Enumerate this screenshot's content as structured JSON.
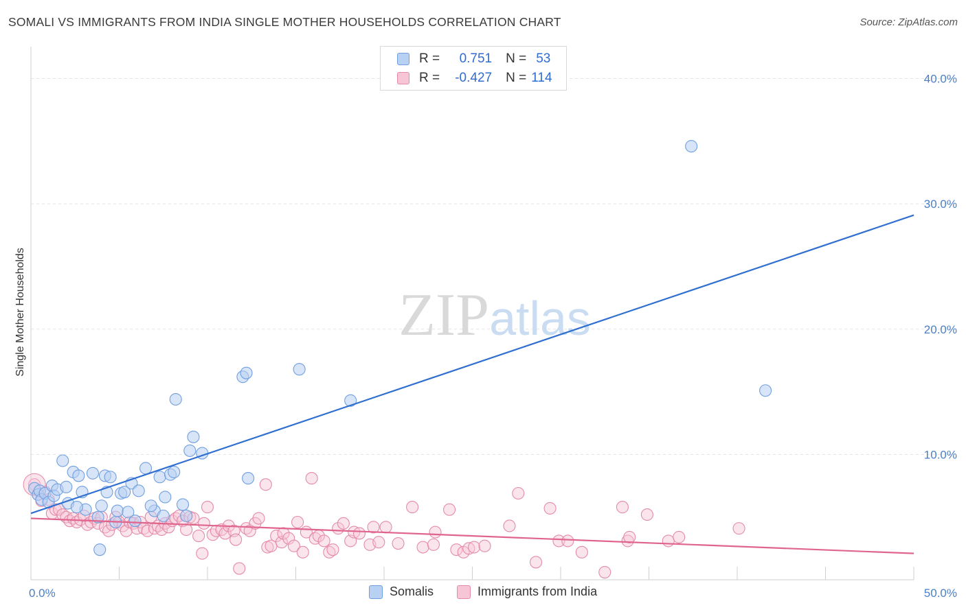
{
  "chart_data": {
    "type": "scatter",
    "title": "SOMALI VS IMMIGRANTS FROM INDIA SINGLE MOTHER HOUSEHOLDS CORRELATION CHART",
    "source": "Source: ZipAtlas.com",
    "xlabel": "",
    "ylabel": "Single Mother Households",
    "xlim": [
      0,
      50
    ],
    "ylim": [
      0,
      42
    ],
    "x_tick_labels": [
      "0.0%",
      "50.0%"
    ],
    "y_ticks": [
      10,
      20,
      30,
      40
    ],
    "y_tick_labels": [
      "10.0%",
      "20.0%",
      "30.0%",
      "40.0%"
    ],
    "watermark": "ZIPatlas",
    "legend": {
      "rows": [
        {
          "r_label": "R =",
          "r_value": "0.751",
          "n_label": "N =",
          "n_value": "53"
        },
        {
          "r_label": "R =",
          "r_value": "-0.427",
          "n_label": "N =",
          "n_value": "114"
        }
      ]
    },
    "series": [
      {
        "name": "Somalis",
        "color": "#6f9fe0",
        "fill": "#b8d0f2",
        "line_color": "#2f6fd0",
        "trend": {
          "x0": 0,
          "y0": 5.3,
          "x1": 50,
          "y1": 29.1
        },
        "points": [
          [
            0.2,
            7.3
          ],
          [
            0.4,
            6.8
          ],
          [
            0.5,
            7.1
          ],
          [
            0.6,
            6.4
          ],
          [
            0.8,
            6.9
          ],
          [
            1.0,
            6.2
          ],
          [
            1.2,
            7.5
          ],
          [
            1.3,
            6.7
          ],
          [
            1.5,
            7.2
          ],
          [
            1.8,
            9.5
          ],
          [
            2.0,
            7.4
          ],
          [
            2.1,
            6.1
          ],
          [
            2.4,
            8.6
          ],
          [
            2.7,
            8.3
          ],
          [
            2.9,
            7.0
          ],
          [
            3.1,
            5.6
          ],
          [
            3.5,
            8.5
          ],
          [
            3.8,
            5.0
          ],
          [
            3.9,
            2.4
          ],
          [
            4.2,
            8.3
          ],
          [
            4.3,
            7.0
          ],
          [
            4.5,
            8.2
          ],
          [
            4.8,
            4.6
          ],
          [
            4.9,
            5.5
          ],
          [
            5.1,
            6.9
          ],
          [
            5.3,
            7.0
          ],
          [
            5.5,
            5.4
          ],
          [
            5.7,
            7.7
          ],
          [
            5.9,
            4.7
          ],
          [
            6.1,
            7.1
          ],
          [
            6.5,
            8.9
          ],
          [
            7.0,
            5.5
          ],
          [
            7.3,
            8.2
          ],
          [
            7.5,
            5.1
          ],
          [
            7.6,
            6.6
          ],
          [
            7.9,
            8.4
          ],
          [
            8.1,
            8.6
          ],
          [
            8.2,
            14.4
          ],
          [
            8.6,
            6.0
          ],
          [
            8.8,
            5.1
          ],
          [
            9.0,
            10.3
          ],
          [
            9.2,
            11.4
          ],
          [
            9.7,
            10.1
          ],
          [
            12.0,
            16.2
          ],
          [
            12.2,
            16.5
          ],
          [
            12.3,
            8.1
          ],
          [
            15.2,
            16.8
          ],
          [
            18.1,
            14.3
          ],
          [
            37.4,
            34.6
          ],
          [
            41.6,
            15.1
          ],
          [
            2.6,
            5.8
          ],
          [
            6.8,
            5.9
          ],
          [
            4.0,
            5.9
          ]
        ]
      },
      {
        "name": "Immigrants from India",
        "color": "#e48aa8",
        "fill": "#f7c6d6",
        "line_color": "#e0658c",
        "trend": {
          "x0": 0,
          "y0": 4.9,
          "x1": 50,
          "y1": 2.1
        },
        "points": [
          [
            0.2,
            7.6
          ],
          [
            0.4,
            6.8
          ],
          [
            0.6,
            6.3
          ],
          [
            0.8,
            7.0
          ],
          [
            1.0,
            6.4
          ],
          [
            1.2,
            5.3
          ],
          [
            1.4,
            5.6
          ],
          [
            1.6,
            5.6
          ],
          [
            1.8,
            5.2
          ],
          [
            2.0,
            5.0
          ],
          [
            2.2,
            4.7
          ],
          [
            2.4,
            4.9
          ],
          [
            2.6,
            4.6
          ],
          [
            2.8,
            4.8
          ],
          [
            3.0,
            5.1
          ],
          [
            3.2,
            4.4
          ],
          [
            3.4,
            4.6
          ],
          [
            3.6,
            4.9
          ],
          [
            3.8,
            4.5
          ],
          [
            4.0,
            5.0
          ],
          [
            4.2,
            4.2
          ],
          [
            4.4,
            3.9
          ],
          [
            4.6,
            4.4
          ],
          [
            4.8,
            5.0
          ],
          [
            5.0,
            4.6
          ],
          [
            5.2,
            4.3
          ],
          [
            5.4,
            3.9
          ],
          [
            5.6,
            4.6
          ],
          [
            5.8,
            4.5
          ],
          [
            6.0,
            4.1
          ],
          [
            6.2,
            4.6
          ],
          [
            6.4,
            4.1
          ],
          [
            6.6,
            3.9
          ],
          [
            6.8,
            5.0
          ],
          [
            7.0,
            4.1
          ],
          [
            7.2,
            4.3
          ],
          [
            7.4,
            4.0
          ],
          [
            7.6,
            4.5
          ],
          [
            7.8,
            4.2
          ],
          [
            8.0,
            4.7
          ],
          [
            8.2,
            4.9
          ],
          [
            8.4,
            5.1
          ],
          [
            8.6,
            4.7
          ],
          [
            8.8,
            4.0
          ],
          [
            9.0,
            5.0
          ],
          [
            9.2,
            4.9
          ],
          [
            9.5,
            3.5
          ],
          [
            9.7,
            2.1
          ],
          [
            9.8,
            4.5
          ],
          [
            10.0,
            5.8
          ],
          [
            10.3,
            3.6
          ],
          [
            10.5,
            3.9
          ],
          [
            10.8,
            4.0
          ],
          [
            11.0,
            3.7
          ],
          [
            11.2,
            4.3
          ],
          [
            11.5,
            3.9
          ],
          [
            11.6,
            3.2
          ],
          [
            11.8,
            0.9
          ],
          [
            12.2,
            4.1
          ],
          [
            12.4,
            3.9
          ],
          [
            12.7,
            4.5
          ],
          [
            12.9,
            4.9
          ],
          [
            13.3,
            7.6
          ],
          [
            13.4,
            2.6
          ],
          [
            13.6,
            2.7
          ],
          [
            13.9,
            3.5
          ],
          [
            14.2,
            3.0
          ],
          [
            14.3,
            3.7
          ],
          [
            14.6,
            3.3
          ],
          [
            14.9,
            2.7
          ],
          [
            15.1,
            4.6
          ],
          [
            15.4,
            2.2
          ],
          [
            15.6,
            3.8
          ],
          [
            15.9,
            8.1
          ],
          [
            16.1,
            3.3
          ],
          [
            16.3,
            3.5
          ],
          [
            16.6,
            3.1
          ],
          [
            16.9,
            2.2
          ],
          [
            17.1,
            2.4
          ],
          [
            17.4,
            4.1
          ],
          [
            17.7,
            4.5
          ],
          [
            18.1,
            3.1
          ],
          [
            18.3,
            3.8
          ],
          [
            18.6,
            3.7
          ],
          [
            19.2,
            2.8
          ],
          [
            19.4,
            4.2
          ],
          [
            19.7,
            3.0
          ],
          [
            20.1,
            4.2
          ],
          [
            20.8,
            2.9
          ],
          [
            21.6,
            5.8
          ],
          [
            22.2,
            2.6
          ],
          [
            22.8,
            2.8
          ],
          [
            22.9,
            3.8
          ],
          [
            23.7,
            5.6
          ],
          [
            24.1,
            2.4
          ],
          [
            24.5,
            2.2
          ],
          [
            24.8,
            2.5
          ],
          [
            25.1,
            2.6
          ],
          [
            25.7,
            2.7
          ],
          [
            27.1,
            4.3
          ],
          [
            27.6,
            6.9
          ],
          [
            28.6,
            1.4
          ],
          [
            29.4,
            5.7
          ],
          [
            29.9,
            3.1
          ],
          [
            30.4,
            3.1
          ],
          [
            31.2,
            2.2
          ],
          [
            32.5,
            0.6
          ],
          [
            33.5,
            5.8
          ],
          [
            33.8,
            3.1
          ],
          [
            33.9,
            3.4
          ],
          [
            34.9,
            5.2
          ],
          [
            36.1,
            3.1
          ],
          [
            36.7,
            3.4
          ],
          [
            40.1,
            4.1
          ]
        ]
      }
    ]
  }
}
